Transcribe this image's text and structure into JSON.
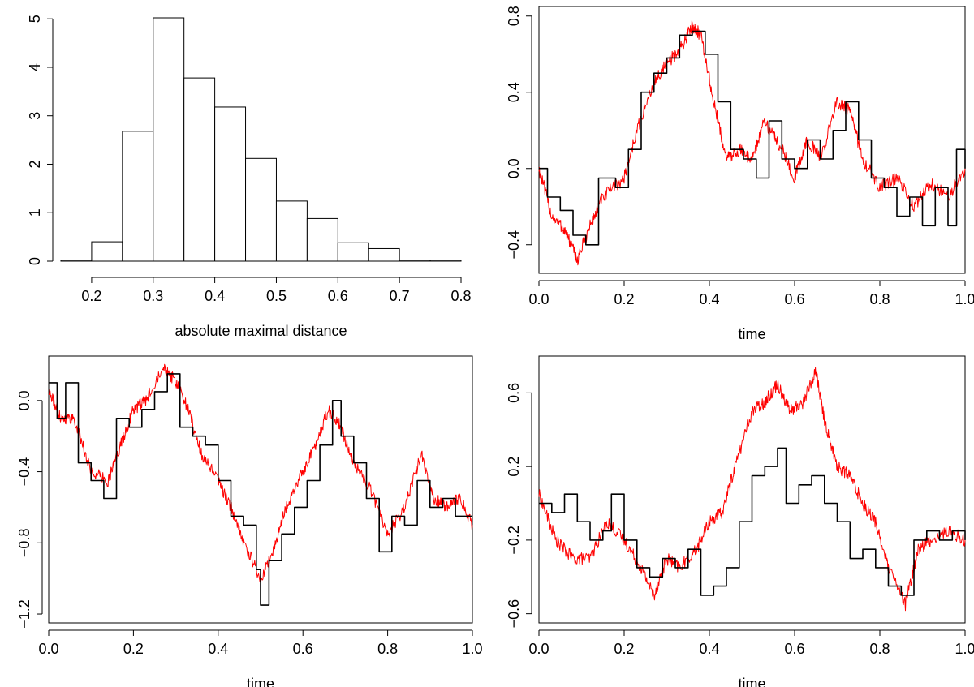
{
  "chart_data": [
    {
      "type": "bar",
      "panel": "histogram",
      "title": "",
      "xlabel": "absolute maximal distance",
      "ylabel": "",
      "bins": [
        {
          "from": 0.15,
          "to": 0.2,
          "value": 0.02
        },
        {
          "from": 0.2,
          "to": 0.25,
          "value": 0.4
        },
        {
          "from": 0.25,
          "to": 0.3,
          "value": 2.68
        },
        {
          "from": 0.3,
          "to": 0.35,
          "value": 5.02
        },
        {
          "from": 0.35,
          "to": 0.4,
          "value": 3.78
        },
        {
          "from": 0.4,
          "to": 0.45,
          "value": 3.18
        },
        {
          "from": 0.45,
          "to": 0.5,
          "value": 2.12
        },
        {
          "from": 0.5,
          "to": 0.55,
          "value": 1.24
        },
        {
          "from": 0.55,
          "to": 0.6,
          "value": 0.88
        },
        {
          "from": 0.6,
          "to": 0.65,
          "value": 0.38
        },
        {
          "from": 0.65,
          "to": 0.7,
          "value": 0.26
        },
        {
          "from": 0.7,
          "to": 0.75,
          "value": 0.02
        },
        {
          "from": 0.75,
          "to": 0.8,
          "value": 0.02
        }
      ],
      "xlim": [
        0.15,
        0.8
      ],
      "ylim": [
        0,
        5.02
      ],
      "x_ticks": [
        "0.2",
        "0.3",
        "0.4",
        "0.5",
        "0.6",
        "0.7",
        "0.8"
      ],
      "y_ticks": [
        "0",
        "1",
        "2",
        "3",
        "4",
        "5"
      ],
      "box": false
    },
    {
      "type": "line",
      "panel": "paths-1",
      "title": "",
      "xlabel": "time",
      "ylabel": "",
      "xlim": [
        0,
        1
      ],
      "ylim": [
        -0.55,
        0.85
      ],
      "x_ticks": [
        "0.0",
        "0.2",
        "0.4",
        "0.6",
        "0.8",
        "1.0"
      ],
      "y_ticks": [
        "-0.4",
        "0.0",
        "0.4",
        "0.8"
      ],
      "box": true,
      "series": [
        {
          "color": "#ff0000",
          "style": "noisy",
          "x": [
            0,
            0.03,
            0.06,
            0.09,
            0.12,
            0.15,
            0.2,
            0.23,
            0.27,
            0.3,
            0.33,
            0.36,
            0.38,
            0.41,
            0.44,
            0.47,
            0.5,
            0.53,
            0.57,
            0.6,
            0.63,
            0.66,
            0.7,
            0.73,
            0.76,
            0.8,
            0.84,
            0.88,
            0.92,
            0.96,
            1.0
          ],
          "y": [
            0.0,
            -0.25,
            -0.32,
            -0.48,
            -0.3,
            -0.15,
            -0.05,
            0.2,
            0.45,
            0.55,
            0.62,
            0.75,
            0.7,
            0.35,
            0.05,
            0.1,
            0.05,
            0.25,
            0.1,
            -0.05,
            0.15,
            0.05,
            0.35,
            0.3,
            0.05,
            -0.1,
            -0.05,
            -0.2,
            -0.08,
            -0.15,
            0.0
          ]
        },
        {
          "color": "#000000",
          "style": "step",
          "x": [
            0,
            0.02,
            0.05,
            0.08,
            0.11,
            0.14,
            0.18,
            0.21,
            0.24,
            0.27,
            0.3,
            0.33,
            0.36,
            0.39,
            0.42,
            0.45,
            0.48,
            0.51,
            0.54,
            0.57,
            0.6,
            0.63,
            0.66,
            0.69,
            0.72,
            0.75,
            0.78,
            0.81,
            0.84,
            0.87,
            0.9,
            0.93,
            0.96,
            0.98,
            1.0
          ],
          "y": [
            0.0,
            -0.15,
            -0.22,
            -0.35,
            -0.4,
            -0.05,
            -0.1,
            0.1,
            0.4,
            0.5,
            0.58,
            0.7,
            0.72,
            0.6,
            0.35,
            0.1,
            0.05,
            -0.05,
            0.25,
            0.05,
            0.0,
            0.15,
            0.05,
            0.2,
            0.35,
            0.15,
            -0.05,
            -0.1,
            -0.25,
            -0.15,
            -0.3,
            -0.1,
            -0.3,
            0.1,
            0.0
          ]
        }
      ]
    },
    {
      "type": "line",
      "panel": "paths-2",
      "title": "",
      "xlabel": "time",
      "ylabel": "",
      "xlim": [
        0,
        1
      ],
      "ylim": [
        -1.25,
        0.25
      ],
      "x_ticks": [
        "0.0",
        "0.2",
        "0.4",
        "0.6",
        "0.8",
        "1.0"
      ],
      "y_ticks": [
        "-1.2",
        "-0.8",
        "-0.4",
        "0.0"
      ],
      "box": true,
      "series": [
        {
          "color": "#ff0000",
          "style": "noisy",
          "x": [
            0,
            0.03,
            0.06,
            0.1,
            0.14,
            0.17,
            0.2,
            0.23,
            0.27,
            0.3,
            0.33,
            0.36,
            0.4,
            0.43,
            0.46,
            0.5,
            0.53,
            0.56,
            0.6,
            0.63,
            0.66,
            0.69,
            0.72,
            0.76,
            0.8,
            0.84,
            0.88,
            0.91,
            0.94,
            0.97,
            1.0
          ],
          "y": [
            0.05,
            -0.1,
            -0.1,
            -0.4,
            -0.45,
            -0.25,
            -0.05,
            0.0,
            0.2,
            0.1,
            -0.05,
            -0.3,
            -0.45,
            -0.6,
            -0.8,
            -1.0,
            -0.85,
            -0.6,
            -0.4,
            -0.25,
            -0.05,
            -0.15,
            -0.35,
            -0.5,
            -0.75,
            -0.6,
            -0.3,
            -0.55,
            -0.6,
            -0.55,
            -0.7
          ]
        },
        {
          "color": "#000000",
          "style": "step",
          "x": [
            0,
            0.02,
            0.04,
            0.07,
            0.1,
            0.13,
            0.16,
            0.19,
            0.22,
            0.25,
            0.28,
            0.31,
            0.34,
            0.37,
            0.4,
            0.43,
            0.46,
            0.49,
            0.5,
            0.52,
            0.55,
            0.58,
            0.61,
            0.64,
            0.67,
            0.69,
            0.72,
            0.75,
            0.78,
            0.81,
            0.84,
            0.87,
            0.9,
            0.93,
            0.96,
            1.0
          ],
          "y": [
            0.1,
            -0.1,
            0.1,
            -0.35,
            -0.45,
            -0.55,
            -0.1,
            -0.15,
            -0.05,
            0.05,
            0.15,
            -0.15,
            -0.2,
            -0.25,
            -0.45,
            -0.65,
            -0.7,
            -0.95,
            -1.15,
            -0.9,
            -0.75,
            -0.6,
            -0.45,
            -0.25,
            0.0,
            -0.2,
            -0.35,
            -0.55,
            -0.85,
            -0.65,
            -0.7,
            -0.45,
            -0.6,
            -0.55,
            -0.65,
            -0.65
          ]
        }
      ]
    },
    {
      "type": "line",
      "panel": "paths-3",
      "title": "",
      "xlabel": "time",
      "ylabel": "",
      "xlim": [
        0,
        1
      ],
      "ylim": [
        -0.65,
        0.8
      ],
      "x_ticks": [
        "0.0",
        "0.2",
        "0.4",
        "0.6",
        "0.8",
        "1.0"
      ],
      "y_ticks": [
        "-0.6",
        "-0.2",
        "0.2",
        "0.6"
      ],
      "box": true,
      "series": [
        {
          "color": "#ff0000",
          "style": "noisy",
          "x": [
            0,
            0.04,
            0.08,
            0.12,
            0.16,
            0.2,
            0.24,
            0.27,
            0.3,
            0.33,
            0.37,
            0.4,
            0.43,
            0.46,
            0.5,
            0.53,
            0.56,
            0.59,
            0.62,
            0.65,
            0.67,
            0.7,
            0.73,
            0.76,
            0.79,
            0.82,
            0.86,
            0.89,
            0.92,
            0.96,
            1.0
          ],
          "y": [
            0.05,
            -0.2,
            -0.3,
            -0.3,
            -0.1,
            -0.2,
            -0.35,
            -0.5,
            -0.3,
            -0.35,
            -0.25,
            -0.1,
            -0.05,
            0.2,
            0.5,
            0.55,
            0.65,
            0.5,
            0.55,
            0.72,
            0.45,
            0.2,
            0.15,
            0.0,
            -0.1,
            -0.35,
            -0.55,
            -0.25,
            -0.2,
            -0.15,
            -0.2
          ]
        },
        {
          "color": "#000000",
          "style": "step",
          "x": [
            0,
            0.03,
            0.06,
            0.09,
            0.12,
            0.15,
            0.17,
            0.2,
            0.23,
            0.26,
            0.29,
            0.32,
            0.35,
            0.38,
            0.41,
            0.44,
            0.47,
            0.5,
            0.53,
            0.56,
            0.58,
            0.61,
            0.64,
            0.67,
            0.7,
            0.73,
            0.76,
            0.79,
            0.82,
            0.85,
            0.88,
            0.91,
            0.94,
            0.97,
            1.0
          ],
          "y": [
            0.0,
            -0.05,
            0.05,
            -0.1,
            -0.2,
            -0.15,
            0.05,
            -0.2,
            -0.35,
            -0.4,
            -0.3,
            -0.35,
            -0.25,
            -0.5,
            -0.45,
            -0.35,
            -0.1,
            0.15,
            0.2,
            0.3,
            0.0,
            0.1,
            0.15,
            0.0,
            -0.1,
            -0.3,
            -0.25,
            -0.35,
            -0.45,
            -0.5,
            -0.2,
            -0.15,
            -0.2,
            -0.15,
            -0.2
          ]
        }
      ]
    }
  ]
}
